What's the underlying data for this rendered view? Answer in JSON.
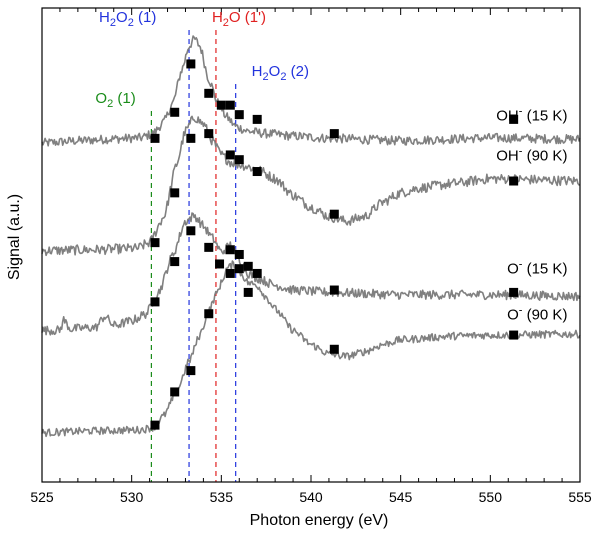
{
  "chart_data": {
    "type": "line",
    "title": "",
    "xlabel": "Photon energy (eV)",
    "ylabel": "Signal (a.u.)",
    "xlim": [
      525,
      555
    ],
    "ylim": [
      0,
      100
    ],
    "x_ticks": [
      525,
      530,
      535,
      540,
      545,
      550,
      555
    ],
    "y_ticks_labeled": false,
    "grid": false,
    "line_color": "#808080",
    "marker_color": "#000000",
    "reference_lines": [
      {
        "x": 531.1,
        "main": "O",
        "sub": "2",
        "rest": " (1)",
        "color": "#1a8c1a"
      },
      {
        "x": 533.2,
        "main": "H",
        "sub": "2",
        "main2": "O",
        "sub2": "2",
        "rest": " (1)",
        "color": "#2233dd"
      },
      {
        "x": 534.7,
        "main": "H",
        "sub": "2",
        "main2": "O",
        "sub2": "",
        "rest": " (1')",
        "color": "#e02020"
      },
      {
        "x": 535.8,
        "main": "H",
        "sub": "2",
        "main2": "O",
        "sub2": "2",
        "rest": " (2)",
        "color": "#2233dd"
      }
    ],
    "series": [
      {
        "name": "OH⁻ (15 K)",
        "base": "OH",
        "sup": "-",
        "temp": " (15 K)",
        "noise": 1.2,
        "curve": [
          [
            525,
            71.5
          ],
          [
            527,
            72
          ],
          [
            529,
            72.4
          ],
          [
            530.5,
            72.6
          ],
          [
            531.2,
            73.5
          ],
          [
            531.8,
            76
          ],
          [
            532.3,
            80
          ],
          [
            532.8,
            87
          ],
          [
            533.2,
            92
          ],
          [
            533.5,
            93.5
          ],
          [
            533.8,
            92
          ],
          [
            534.3,
            85
          ],
          [
            534.8,
            80
          ],
          [
            535.3,
            77
          ],
          [
            535.8,
            75
          ],
          [
            536.5,
            74
          ],
          [
            537.5,
            73.5
          ],
          [
            539,
            73
          ],
          [
            541,
            72.5
          ],
          [
            545,
            72
          ],
          [
            550,
            72.6
          ],
          [
            555,
            72.3
          ]
        ],
        "markers": [
          [
            531.3,
            72.5
          ],
          [
            532.4,
            78
          ],
          [
            533.3,
            88.2
          ],
          [
            534.3,
            82
          ],
          [
            535,
            79.5
          ],
          [
            535.5,
            79.5
          ],
          [
            536,
            77.5
          ],
          [
            537,
            76.5
          ],
          [
            541.3,
            73.5
          ],
          [
            551.3,
            76.5
          ]
        ]
      },
      {
        "name": "OH⁻ (90 K)",
        "base": "OH",
        "sup": "-",
        "temp": " (90 K)",
        "noise": 1.3,
        "curve": [
          [
            525,
            48.8
          ],
          [
            528,
            49
          ],
          [
            530.3,
            49.3
          ],
          [
            531,
            50.5
          ],
          [
            531.8,
            56
          ],
          [
            532.5,
            67
          ],
          [
            533,
            74
          ],
          [
            533.5,
            77
          ],
          [
            534,
            75.5
          ],
          [
            534.5,
            72
          ],
          [
            535,
            69
          ],
          [
            535.5,
            67.5
          ],
          [
            536,
            67
          ],
          [
            537,
            66
          ],
          [
            538,
            64
          ],
          [
            539,
            60.5
          ],
          [
            540,
            58
          ],
          [
            541,
            56
          ],
          [
            542,
            55
          ],
          [
            543,
            56
          ],
          [
            544,
            59
          ],
          [
            545,
            61
          ],
          [
            546,
            62
          ],
          [
            548,
            63
          ],
          [
            550,
            64
          ],
          [
            555,
            63.5
          ]
        ],
        "markers": [
          [
            531.3,
            50.5
          ],
          [
            532.4,
            61
          ],
          [
            533.3,
            72.5
          ],
          [
            534.3,
            73.5
          ],
          [
            535.5,
            69
          ],
          [
            536,
            68
          ],
          [
            537,
            65.5
          ],
          [
            541.3,
            56.5
          ],
          [
            551.3,
            63.5
          ]
        ]
      },
      {
        "name": "O⁻ (15 K)",
        "base": "O",
        "sup": "-",
        "temp": " (15 K)",
        "noise": 1.2,
        "curve": [
          [
            525,
            32
          ],
          [
            526,
            32
          ],
          [
            526.2,
            34.2
          ],
          [
            526.6,
            32.3
          ],
          [
            528,
            32.6
          ],
          [
            528.5,
            35
          ],
          [
            529,
            33
          ],
          [
            530,
            34
          ],
          [
            530.8,
            35.5
          ],
          [
            531.5,
            40
          ],
          [
            532.3,
            48
          ],
          [
            533,
            55
          ],
          [
            533.5,
            56.2
          ],
          [
            534,
            54
          ],
          [
            534.5,
            51.5
          ],
          [
            535,
            48.5
          ],
          [
            535.5,
            50
          ],
          [
            536,
            47
          ],
          [
            536.5,
            44
          ],
          [
            537,
            43
          ],
          [
            538,
            41.5
          ],
          [
            539,
            40.5
          ],
          [
            541,
            40
          ],
          [
            545,
            39.5
          ],
          [
            550,
            39.5
          ],
          [
            555,
            39.2
          ]
        ],
        "markers": [
          [
            531.3,
            38
          ],
          [
            532.4,
            46.5
          ],
          [
            533.3,
            53
          ],
          [
            534.3,
            49.5
          ],
          [
            534.9,
            46
          ],
          [
            535.5,
            49
          ],
          [
            536,
            48
          ],
          [
            536.5,
            45.5
          ],
          [
            537,
            44
          ],
          [
            541.3,
            40.5
          ],
          [
            551.3,
            40
          ]
        ]
      },
      {
        "name": "O⁻ (90 K)",
        "base": "O",
        "sup": "-",
        "temp": " (90 K)",
        "noise": 1.0,
        "curve": [
          [
            525,
            10.4
          ],
          [
            528,
            10.8
          ],
          [
            530.5,
            11
          ],
          [
            531.2,
            11.5
          ],
          [
            531.8,
            14
          ],
          [
            532.5,
            19
          ],
          [
            533.2,
            25.5
          ],
          [
            533.8,
            31
          ],
          [
            534.3,
            36
          ],
          [
            534.7,
            39.5
          ],
          [
            535,
            42
          ],
          [
            535.3,
            45
          ],
          [
            535.7,
            46
          ],
          [
            536.1,
            44
          ],
          [
            536.5,
            42
          ],
          [
            537,
            41.5
          ],
          [
            537.5,
            39
          ],
          [
            538,
            36.5
          ],
          [
            539,
            32
          ],
          [
            540,
            29
          ],
          [
            541,
            27
          ],
          [
            542,
            26.5
          ],
          [
            543,
            27.5
          ],
          [
            544,
            29
          ],
          [
            545,
            30
          ],
          [
            548,
            30.8
          ],
          [
            550,
            31
          ],
          [
            555,
            31.2
          ]
        ],
        "markers": [
          [
            531.3,
            12
          ],
          [
            532.4,
            19
          ],
          [
            533.3,
            23.5
          ],
          [
            534.3,
            35.5
          ],
          [
            535.5,
            44
          ],
          [
            536,
            45
          ],
          [
            536.5,
            40
          ],
          [
            541.3,
            28
          ],
          [
            551.3,
            31
          ]
        ]
      }
    ],
    "series_label_anchor": [
      {
        "x": 554.3,
        "y": 76.3
      },
      {
        "x": 554.3,
        "y": 67.8
      },
      {
        "x": 554.3,
        "y": 44.0
      },
      {
        "x": 554.3,
        "y": 34.3
      }
    ]
  }
}
